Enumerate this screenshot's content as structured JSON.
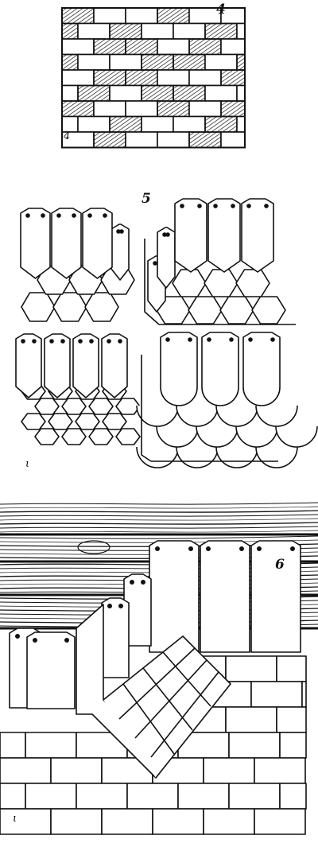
{
  "figures": [
    {
      "label": "4",
      "signature": "4"
    },
    {
      "label": "5",
      "signature": "ι"
    },
    {
      "label": "6",
      "signature": "ι"
    }
  ],
  "colors": {
    "ink": "#111111",
    "paper": "#ffffff"
  }
}
